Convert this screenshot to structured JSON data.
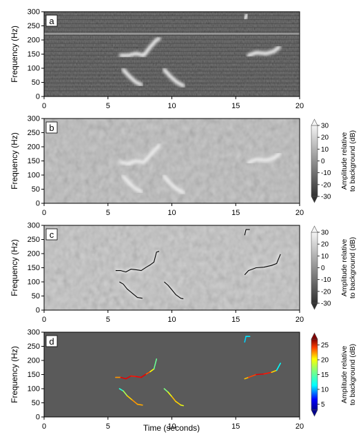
{
  "chart_data": [
    {
      "panel": "a",
      "type": "heatmap",
      "ylabel": "Frequency (Hz)",
      "xlim": [
        0,
        20
      ],
      "ylim": [
        0,
        300
      ],
      "xticks": [
        "0",
        "5",
        "10",
        "15",
        "20"
      ],
      "yticks": [
        "0",
        "50",
        "100",
        "150",
        "200",
        "250",
        "300"
      ],
      "background": "#1e1e1e",
      "tonal_lines_hz": [
        222
      ],
      "calls": [
        {
          "points": [
            [
              6.0,
              145
            ],
            [
              6.6,
              145
            ],
            [
              7.2,
              152
            ],
            [
              7.8,
              145
            ],
            [
              8.3,
              175
            ],
            [
              8.8,
              200
            ],
            [
              9.0,
              205
            ]
          ]
        },
        {
          "points": [
            [
              6.2,
              95
            ],
            [
              6.7,
              70
            ],
            [
              7.2,
              50
            ],
            [
              7.6,
              42
            ]
          ]
        },
        {
          "points": [
            [
              9.4,
              95
            ],
            [
              9.9,
              70
            ],
            [
              10.4,
              50
            ],
            [
              10.9,
              38
            ]
          ]
        },
        {
          "points": [
            [
              16.0,
              145
            ],
            [
              16.6,
              155
            ],
            [
              17.4,
              152
            ],
            [
              18.0,
              160
            ],
            [
              18.4,
              175
            ]
          ]
        },
        {
          "points": [
            [
              15.7,
              275
            ],
            [
              15.9,
              290
            ]
          ]
        }
      ]
    },
    {
      "panel": "b",
      "type": "heatmap",
      "ylabel": "Frequency (Hz)",
      "xlim": [
        0,
        20
      ],
      "ylim": [
        0,
        300
      ],
      "xticks": [
        "0",
        "5",
        "10",
        "15",
        "20"
      ],
      "yticks": [
        "0",
        "50",
        "100",
        "150",
        "200",
        "250",
        "300"
      ],
      "background": "#bfbfbf",
      "colorbar": {
        "label_line1": "Amplitude relative",
        "label_line2": "to background (dB)",
        "ticks": [
          "-30",
          "-20",
          "-10",
          "0",
          "10",
          "20",
          "30"
        ],
        "range": [
          -30,
          30
        ],
        "colormap": "gray"
      },
      "calls": [
        {
          "points": [
            [
              6.0,
              145
            ],
            [
              6.6,
              140
            ],
            [
              7.2,
              150
            ],
            [
              7.8,
              145
            ],
            [
              8.3,
              170
            ],
            [
              8.8,
              195
            ],
            [
              9.0,
              205
            ]
          ]
        },
        {
          "points": [
            [
              6.2,
              95
            ],
            [
              6.7,
              70
            ],
            [
              7.2,
              50
            ],
            [
              7.6,
              42
            ]
          ]
        },
        {
          "points": [
            [
              9.4,
              95
            ],
            [
              9.9,
              70
            ],
            [
              10.4,
              50
            ],
            [
              10.9,
              38
            ]
          ]
        },
        {
          "points": [
            [
              16.0,
              145
            ],
            [
              16.6,
              155
            ],
            [
              17.4,
              152
            ],
            [
              18.0,
              160
            ],
            [
              18.4,
              175
            ]
          ]
        }
      ]
    },
    {
      "panel": "c",
      "type": "heatmap",
      "ylabel": "Frequency (Hz)",
      "xlim": [
        0,
        20
      ],
      "ylim": [
        0,
        300
      ],
      "xticks": [
        "0",
        "5",
        "10",
        "15",
        "20"
      ],
      "yticks": [
        "0",
        "50",
        "100",
        "150",
        "200",
        "250",
        "300"
      ],
      "background": "#c8c8c8",
      "colorbar": {
        "label_line1": "Amplitude relative",
        "label_line2": "to background (dB)",
        "ticks": [
          "-30",
          "-20",
          "-10",
          "0",
          "10",
          "20",
          "30"
        ],
        "range": [
          -30,
          30
        ],
        "colormap": "gray"
      },
      "traces": [
        {
          "points": [
            [
              5.6,
              140
            ],
            [
              6.0,
              140
            ],
            [
              6.4,
              135
            ],
            [
              6.8,
              145
            ],
            [
              7.2,
              143
            ],
            [
              7.6,
              140
            ],
            [
              8.0,
              152
            ],
            [
              8.3,
              160
            ],
            [
              8.6,
              170
            ],
            [
              8.8,
              205
            ],
            [
              9.0,
              208
            ]
          ]
        },
        {
          "points": [
            [
              5.9,
              100
            ],
            [
              6.2,
              92
            ],
            [
              6.5,
              75
            ],
            [
              6.9,
              60
            ],
            [
              7.3,
              45
            ],
            [
              7.7,
              42
            ]
          ]
        },
        {
          "points": [
            [
              9.4,
              100
            ],
            [
              9.7,
              88
            ],
            [
              10.0,
              72
            ],
            [
              10.3,
              55
            ],
            [
              10.7,
              42
            ],
            [
              10.9,
              40
            ]
          ]
        },
        {
          "points": [
            [
              15.7,
              125
            ],
            [
              16.0,
              140
            ],
            [
              16.6,
              150
            ],
            [
              17.2,
              152
            ],
            [
              17.8,
              158
            ],
            [
              18.2,
              165
            ],
            [
              18.5,
              198
            ]
          ]
        },
        {
          "points": [
            [
              15.7,
              265
            ],
            [
              15.8,
              285
            ],
            [
              16.1,
              285
            ]
          ]
        }
      ]
    },
    {
      "panel": "d",
      "type": "line",
      "ylabel": "Frequency (Hz)",
      "xlabel": "Time (seconds)",
      "xlim": [
        0,
        20
      ],
      "ylim": [
        0,
        300
      ],
      "xticks": [
        "0",
        "5",
        "10",
        "15",
        "20"
      ],
      "yticks": [
        "0",
        "50",
        "100",
        "150",
        "200",
        "250",
        "300"
      ],
      "background": "#5a5a5a",
      "colorbar": {
        "label_line1": "Amplitude relative",
        "label_line2": "to background (dB)",
        "ticks": [
          "5",
          "10",
          "15",
          "20",
          "25"
        ],
        "range": [
          3,
          27
        ],
        "colormap": "jet"
      },
      "traces": [
        {
          "points": [
            [
              5.6,
              140,
              17
            ],
            [
              6.0,
              140,
              24
            ],
            [
              6.4,
              135,
              25
            ],
            [
              6.8,
              145,
              24
            ],
            [
              7.2,
              143,
              23
            ],
            [
              7.6,
              140,
              25
            ],
            [
              8.0,
              152,
              24
            ],
            [
              8.3,
              160,
              20
            ],
            [
              8.6,
              170,
              16
            ],
            [
              8.8,
              205,
              13
            ]
          ]
        },
        {
          "points": [
            [
              5.9,
              100,
              12
            ],
            [
              6.2,
              92,
              14
            ],
            [
              6.5,
              75,
              18
            ],
            [
              6.9,
              60,
              20
            ],
            [
              7.3,
              45,
              21
            ],
            [
              7.7,
              42,
              19
            ]
          ]
        },
        {
          "points": [
            [
              9.4,
              100,
              14
            ],
            [
              9.7,
              88,
              16
            ],
            [
              10.0,
              72,
              19
            ],
            [
              10.3,
              55,
              20
            ],
            [
              10.7,
              42,
              18
            ],
            [
              10.9,
              40,
              17
            ]
          ]
        },
        {
          "points": [
            [
              15.7,
              135,
              18
            ],
            [
              16.0,
              140,
              21
            ],
            [
              16.6,
              150,
              24
            ],
            [
              17.2,
              152,
              25
            ],
            [
              17.8,
              158,
              22
            ],
            [
              18.2,
              165,
              16
            ],
            [
              18.5,
              190,
              8
            ]
          ]
        },
        {
          "points": [
            [
              15.7,
              265,
              10
            ],
            [
              15.8,
              285,
              12
            ],
            [
              16.1,
              285,
              11
            ]
          ]
        }
      ]
    }
  ]
}
